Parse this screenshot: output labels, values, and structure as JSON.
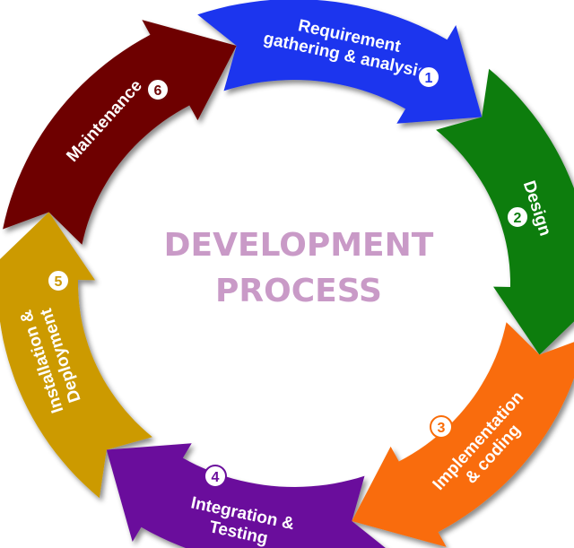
{
  "title": {
    "line1": "DEVELOPMENT",
    "line2": "PROCESS"
  },
  "segments": [
    {
      "number": "1",
      "label_lines": [
        "Requirement",
        "gathering & analysis"
      ],
      "color": "#1f35ee"
    },
    {
      "number": "2",
      "label_lines": [
        "Design"
      ],
      "color": "#0e7d10"
    },
    {
      "number": "3",
      "label_lines": [
        "Implementation",
        "& coding"
      ],
      "color": "#f96c08"
    },
    {
      "number": "4",
      "label_lines": [
        "Integration &",
        "Testing"
      ],
      "color": "#6a0e9c"
    },
    {
      "number": "5",
      "label_lines": [
        "Installation &",
        "Deployment"
      ],
      "color": "#cc9a06"
    },
    {
      "number": "6",
      "label_lines": [
        "Maintenance"
      ],
      "color": "#6e0606"
    }
  ]
}
